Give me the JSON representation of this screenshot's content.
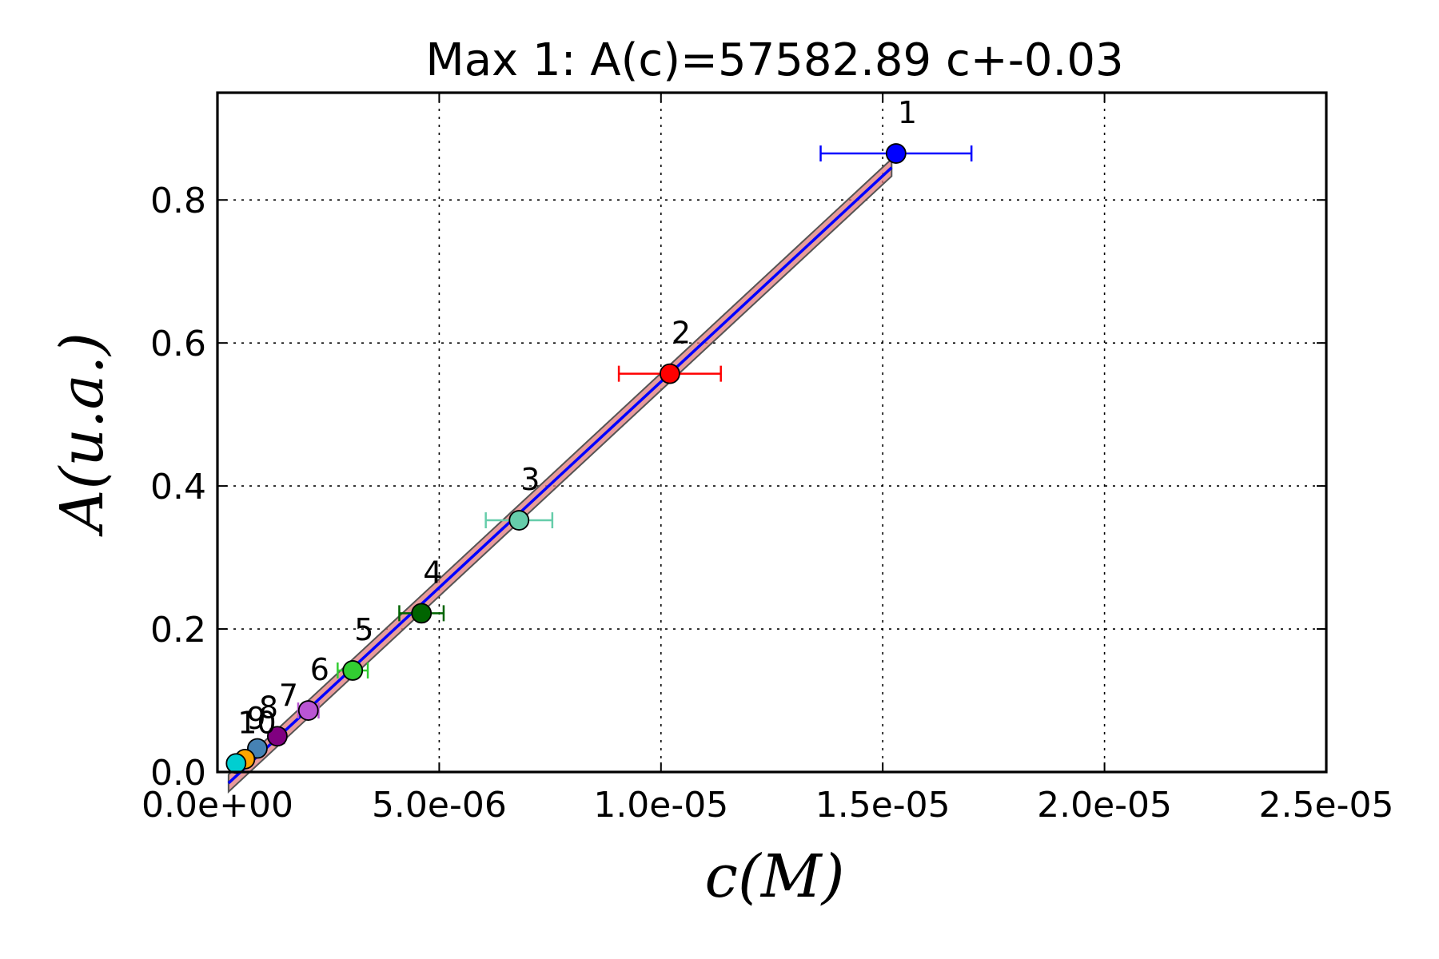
{
  "chart_data": {
    "type": "scatter",
    "title": "Max 1: A(c)=57582.89 c+-0.03",
    "xlabel": "c(M)",
    "ylabel": "A(u.a.)",
    "xlim": [
      0,
      2.5e-05
    ],
    "ylim": [
      0,
      0.95
    ],
    "x_ticks": [
      "0.0e+00",
      "5.0e-06",
      "1.0e-05",
      "1.5e-05",
      "2.0e-05",
      "2.5e-05"
    ],
    "y_ticks": [
      "0.0",
      "0.2",
      "0.4",
      "0.6",
      "0.8"
    ],
    "grid": true,
    "fit": {
      "slope": 57582.89,
      "intercept": -0.03,
      "x_range": [
        2.5e-07,
        1.52e-05
      ]
    },
    "points": [
      {
        "label": "1",
        "x": 1.53e-05,
        "y": 0.865,
        "xerr": 1.7e-06,
        "color": "#0000ff"
      },
      {
        "label": "2",
        "x": 1.02e-05,
        "y": 0.557,
        "xerr": 1.15e-06,
        "color": "#ff0000"
      },
      {
        "label": "3",
        "x": 6.8e-06,
        "y": 0.352,
        "xerr": 7.5e-07,
        "color": "#66cdaa"
      },
      {
        "label": "4",
        "x": 4.6e-06,
        "y": 0.222,
        "xerr": 5e-07,
        "color": "#006400"
      },
      {
        "label": "5",
        "x": 3.05e-06,
        "y": 0.142,
        "xerr": 3.4e-07,
        "color": "#32cd32"
      },
      {
        "label": "6",
        "x": 2.05e-06,
        "y": 0.086,
        "xerr": 2.3e-07,
        "color": "#ba55d3"
      },
      {
        "label": "7",
        "x": 1.35e-06,
        "y": 0.05,
        "xerr": 1.5e-07,
        "color": "#800080"
      },
      {
        "label": "8",
        "x": 9e-07,
        "y": 0.033,
        "xerr": 1e-07,
        "color": "#4682b4"
      },
      {
        "label": "9",
        "x": 6.2e-07,
        "y": 0.018,
        "xerr": 7e-08,
        "color": "#ffa500"
      },
      {
        "label": "10",
        "x": 4.2e-07,
        "y": 0.012,
        "xerr": 5e-08,
        "color": "#00ced1"
      }
    ]
  }
}
